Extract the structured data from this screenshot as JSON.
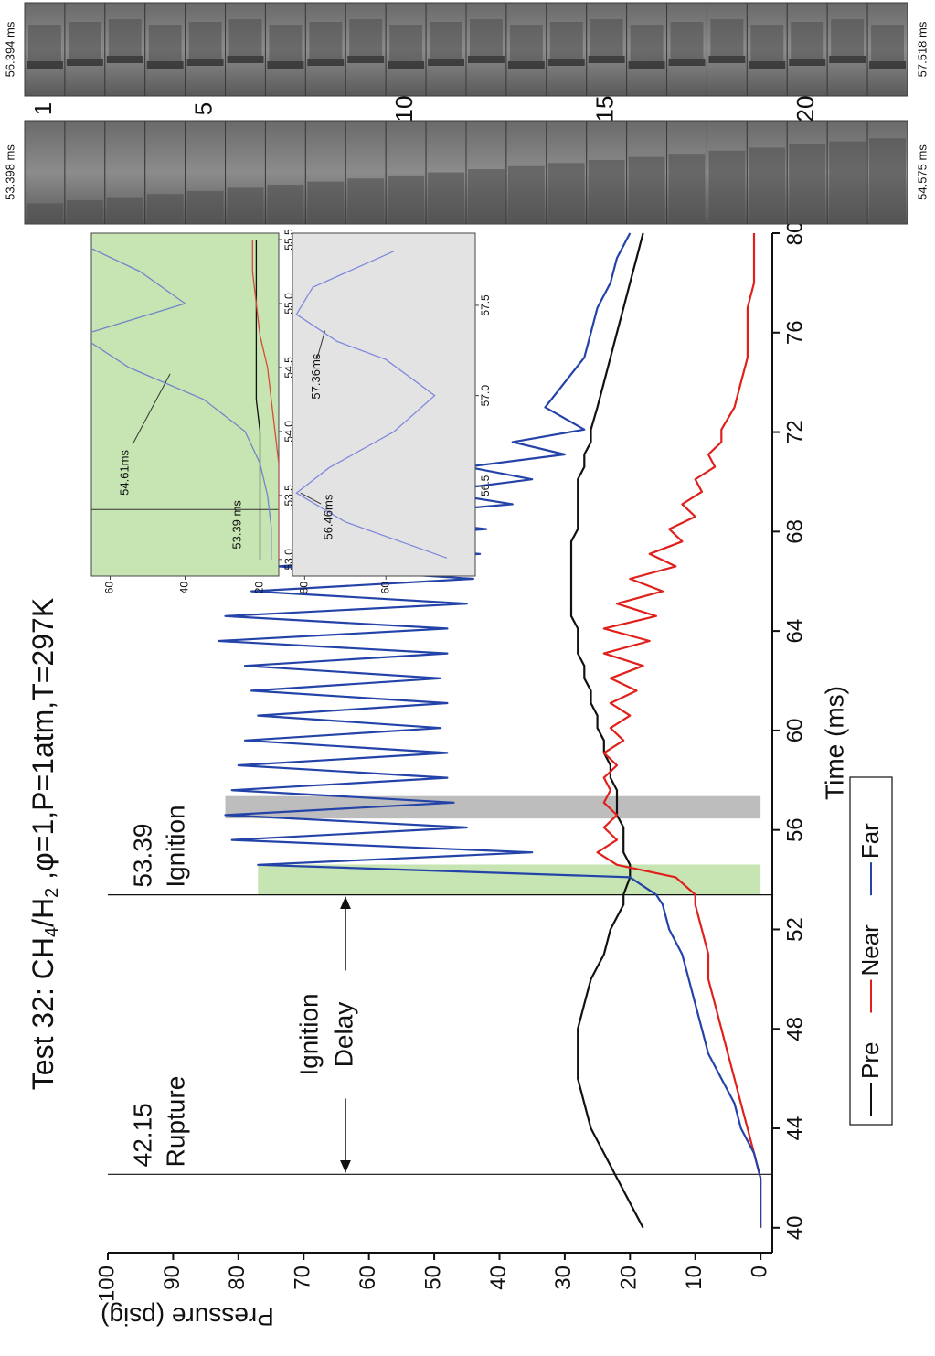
{
  "chart_data": {
    "type": "line",
    "title_parts": [
      "Test 32: CH",
      "4",
      "/H",
      "2",
      " ,φ=1,P=1atm,T=297K"
    ],
    "x_label": "Time (ms)",
    "y_label": "Pressure (psig)",
    "xlim": [
      39,
      80
    ],
    "ylim": [
      -1.8,
      100
    ],
    "xticks": [
      40,
      44,
      48,
      52,
      56,
      60,
      64,
      68,
      72,
      76,
      80
    ],
    "yticks": [
      0,
      10,
      20,
      30,
      40,
      50,
      60,
      70,
      80,
      90,
      100
    ],
    "x": [
      40,
      41,
      42,
      43,
      44,
      45,
      46,
      47,
      48,
      49,
      50,
      51,
      52,
      53,
      53.4,
      54.1,
      54.6,
      55.1,
      55.6,
      56.1,
      56.6,
      57.1,
      57.6,
      58.1,
      58.6,
      59.1,
      59.6,
      60.1,
      60.6,
      61.1,
      61.6,
      62.1,
      62.6,
      63.1,
      63.6,
      64.1,
      64.6,
      65.1,
      65.6,
      66.1,
      66.6,
      67.1,
      67.6,
      68.1,
      68.6,
      69.1,
      69.6,
      70.1,
      70.6,
      71.1,
      71.6,
      72.1,
      73,
      74,
      75,
      76,
      77,
      78,
      79,
      80
    ],
    "series": [
      {
        "name": "Pre",
        "color": "#111111",
        "values": [
          18,
          20,
          22,
          24,
          26,
          27,
          28,
          28,
          28,
          27,
          26,
          24,
          23,
          21,
          21,
          20,
          20,
          21,
          21,
          21,
          22,
          22,
          22,
          23,
          23,
          24,
          24,
          25,
          25,
          26,
          26,
          27,
          27,
          28,
          28,
          28,
          29,
          29,
          29,
          29,
          29,
          29,
          29,
          28,
          28,
          28,
          28,
          28,
          27,
          27,
          26,
          26,
          25,
          24,
          23,
          22,
          21,
          20,
          19,
          18
        ]
      },
      {
        "name": "Near",
        "color": "#e0201b",
        "values": [
          0,
          0,
          0,
          1,
          2,
          3,
          4,
          5,
          6,
          7,
          8,
          8,
          9,
          10,
          10,
          13,
          22,
          25,
          22,
          24,
          22,
          24,
          23,
          24,
          22,
          24,
          21,
          23,
          20,
          23,
          19,
          23,
          18,
          24,
          17,
          24,
          16,
          22,
          15,
          20,
          13,
          17,
          12,
          14,
          10,
          12,
          9,
          10,
          7,
          8,
          6,
          6,
          4,
          3,
          2,
          2,
          2,
          1,
          1,
          1
        ]
      },
      {
        "name": "Far",
        "color": "#2443a8",
        "values": [
          0,
          0,
          0,
          1,
          3,
          4,
          6,
          8,
          9,
          10,
          11,
          12,
          14,
          15,
          16,
          20,
          77,
          35,
          81,
          45,
          82,
          47,
          81,
          48,
          80,
          48,
          79,
          49,
          77,
          48,
          78,
          49,
          79,
          48,
          83,
          48,
          82,
          45,
          78,
          44,
          74,
          43,
          70,
          42,
          60,
          38,
          50,
          35,
          45,
          30,
          38,
          27,
          33,
          30,
          27,
          26,
          25,
          23,
          22,
          20
        ]
      }
    ],
    "markers": [
      {
        "value": 42.15,
        "label": "Rupture"
      },
      {
        "value": 53.39,
        "label": "Ignition"
      }
    ],
    "delay_label": [
      "Ignition",
      "Delay"
    ],
    "spans": [
      {
        "from": 53.39,
        "to": 54.61,
        "top": 77,
        "color": "#c6e5b3"
      },
      {
        "from": 56.46,
        "to": 57.36,
        "top": 82,
        "color": "#bdbdbd"
      }
    ],
    "insets": [
      {
        "background": "#c6e5b3",
        "xlim": [
          52.87,
          55.55
        ],
        "ylim": [
          15,
          65
        ],
        "xticks": [
          {
            "value": 53,
            "label": "53.0"
          },
          53.5,
          {
            "value": 54,
            "label": "54.0"
          },
          54.5,
          {
            "value": 55,
            "label": "55.0"
          },
          55.5
        ],
        "yticks": [
          20,
          40,
          60
        ],
        "x": [
          53.0,
          53.25,
          53.5,
          53.75,
          54.0,
          54.25,
          54.5,
          54.75,
          55.0,
          55.25,
          55.5
        ],
        "series": [
          {
            "color": "#111111",
            "values": [
              20,
              20,
              20,
              20,
              20,
              21,
              21,
              21,
              21,
              21,
              21
            ]
          },
          {
            "color": "#d84a3c",
            "values": [
              15,
              15,
              15,
              15,
              16,
              17,
              18,
              20,
              21,
              22,
              22
            ]
          },
          {
            "color": "#6f86c9",
            "values": [
              17,
              17,
              18,
              20,
              24,
              35,
              55,
              68,
              40,
              52,
              70
            ]
          }
        ],
        "vline": 53.39,
        "labels": [
          "53.39 ms",
          "54.61ms"
        ]
      },
      {
        "background": "#e3e3e3",
        "xlim": [
          56.0,
          57.9
        ],
        "ylim": [
          38,
          83
        ],
        "xticks": [
          56.5,
          {
            "value": 57,
            "label": "57.0"
          },
          57.5
        ],
        "yticks": [
          60,
          80
        ],
        "x": [
          56.1,
          56.3,
          56.46,
          56.6,
          56.8,
          57.0,
          57.2,
          57.3,
          57.36,
          57.45,
          57.6,
          57.8
        ],
        "series": [
          {
            "color": "#8088dc",
            "values": [
              45,
              70,
              82,
              74,
              58,
              48,
              60,
              72,
              76,
              82,
              78,
              58
            ]
          }
        ],
        "labels": [
          "56.46ms",
          "57.36ms"
        ]
      }
    ],
    "strips": [
      {
        "start": "56.394 ms",
        "end": "57.518 ms"
      },
      {
        "start": "53.398 ms",
        "end": "54.575 ms"
      }
    ],
    "frame_labels": [
      1,
      5,
      10,
      15,
      20
    ]
  }
}
